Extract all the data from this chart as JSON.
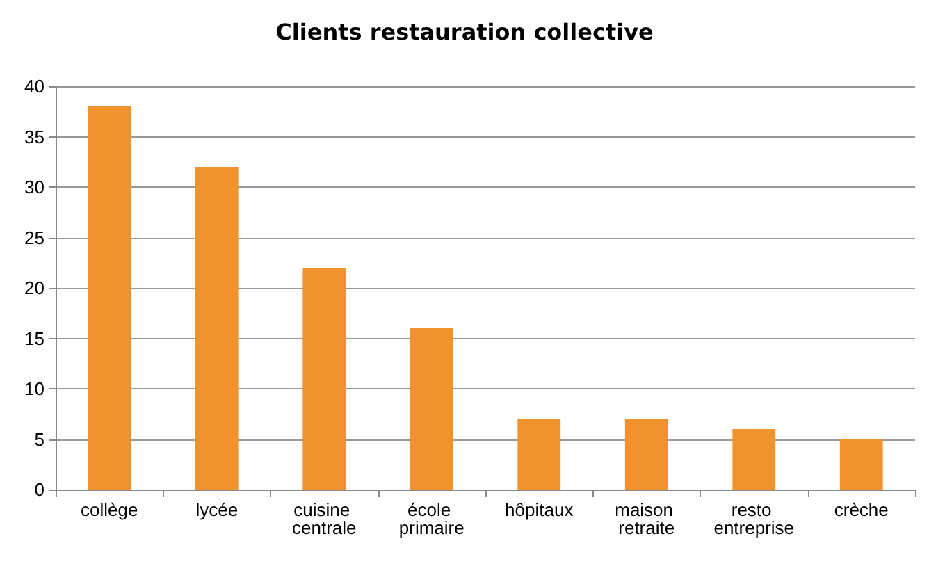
{
  "chart_data": {
    "type": "bar",
    "title": "Clients restauration collective",
    "categories": [
      "collège",
      "lycée",
      "cuisine centrale",
      "école primaire",
      "hôpitaux",
      "maison retraite",
      "resto entreprise",
      "crèche"
    ],
    "values": [
      38,
      32,
      22,
      16,
      7,
      7,
      6,
      5
    ],
    "color": "#f0922e",
    "ylim": [
      0,
      40
    ],
    "yticks": [
      0,
      5,
      10,
      15,
      20,
      25,
      30,
      35,
      40
    ],
    "grid": "y"
  }
}
